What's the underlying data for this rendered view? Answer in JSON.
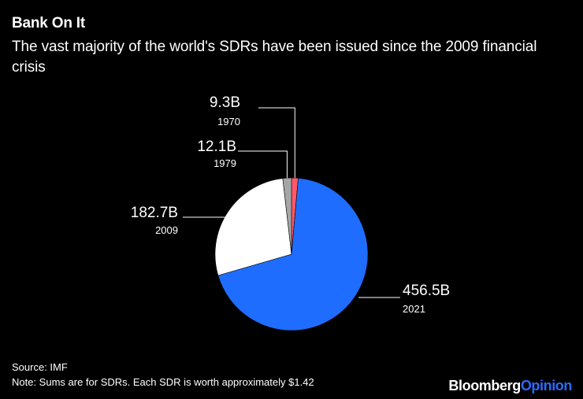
{
  "header": {
    "title": "Bank On It",
    "subtitle": "The vast majority of the world's SDRs have been issued since the 2009 financial crisis"
  },
  "footer": {
    "source": "Source: IMF",
    "note": "Note: Sums are for SDRs. Each SDR is worth approximately $1.42",
    "brand_part1": "Bloomberg",
    "brand_part2": "Opinion"
  },
  "chart_data": {
    "type": "pie",
    "title": "Bank On It",
    "subtitle": "The vast majority of the world's SDRs have been issued since the 2009 financial crisis",
    "unit": "billion SDR",
    "slices": [
      {
        "year": "1970",
        "label": "9.3B",
        "value": 9.3,
        "color": "#ff5a6a"
      },
      {
        "year": "2021",
        "label": "456.5B",
        "value": 456.5,
        "color": "#1f6dff"
      },
      {
        "year": "2009",
        "label": "182.7B",
        "value": 182.7,
        "color": "#ffffff"
      },
      {
        "year": "1979",
        "label": "12.1B",
        "value": 12.1,
        "color": "#a6a6a6"
      }
    ]
  }
}
